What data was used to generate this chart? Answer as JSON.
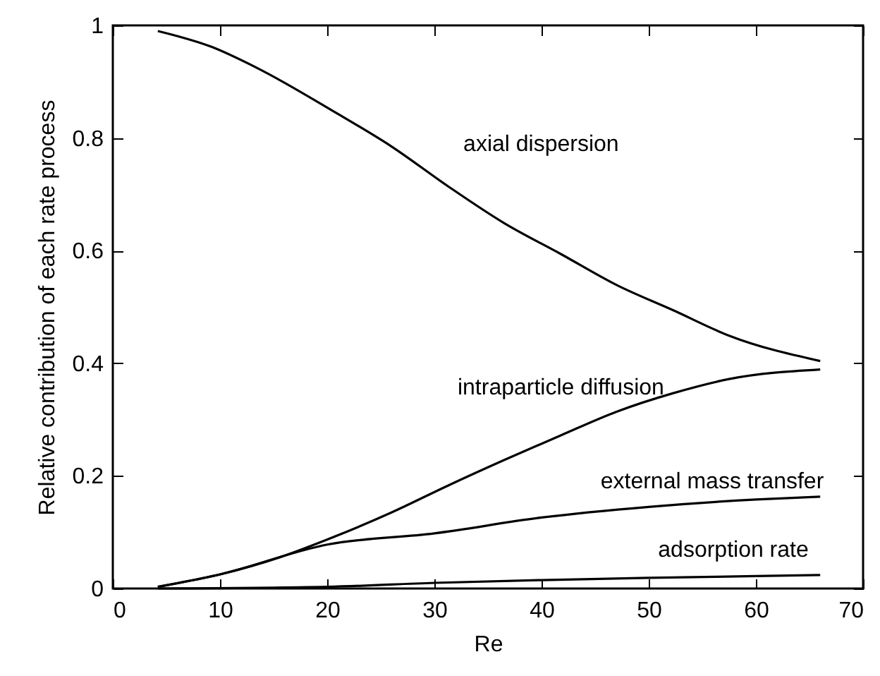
{
  "chart_data": {
    "type": "line",
    "xlabel": "Re",
    "ylabel": "Relative contribution of each rate process",
    "xlim": [
      0,
      70
    ],
    "ylim": [
      0,
      1
    ],
    "xticks": [
      0,
      10,
      20,
      30,
      40,
      50,
      60,
      70
    ],
    "yticks": [
      0,
      0.2,
      0.4,
      0.6,
      0.8,
      1
    ],
    "grid": false,
    "marker": "none",
    "line_style": "solid",
    "series": [
      {
        "name": "axial dispersion",
        "color": "#000000",
        "x": [
          4.2,
          9.2,
          13.4,
          20.8,
          26,
          31.3,
          36.5,
          41.8,
          47,
          52.3,
          57.5,
          66
        ],
        "values": [
          0.99,
          0.962,
          0.925,
          0.845,
          0.785,
          0.714,
          0.649,
          0.594,
          0.539,
          0.494,
          0.449,
          0.404
        ]
      },
      {
        "name": "intraparticle diffusion",
        "color": "#000000",
        "x": [
          4.2,
          10.2,
          15.5,
          20.8,
          26,
          31.3,
          36.5,
          41.8,
          47,
          52.3,
          57.5,
          66
        ],
        "values": [
          0.003,
          0.026,
          0.055,
          0.093,
          0.135,
          0.183,
          0.228,
          0.272,
          0.314,
          0.347,
          0.372,
          0.389
        ]
      },
      {
        "name": "external mass transfer",
        "color": "#000000",
        "x": [
          4.2,
          10,
          20,
          30,
          40,
          50,
          60,
          66
        ],
        "values": [
          0.003,
          0.025,
          0.078,
          0.098,
          0.126,
          0.145,
          0.158,
          0.163
        ]
      },
      {
        "name": "adsorption rate",
        "color": "#000000",
        "x": [
          4.2,
          20,
          30,
          40,
          50,
          60,
          66
        ],
        "values": [
          0,
          0.003,
          0.01,
          0.015,
          0.019,
          0.022,
          0.024
        ]
      }
    ]
  }
}
